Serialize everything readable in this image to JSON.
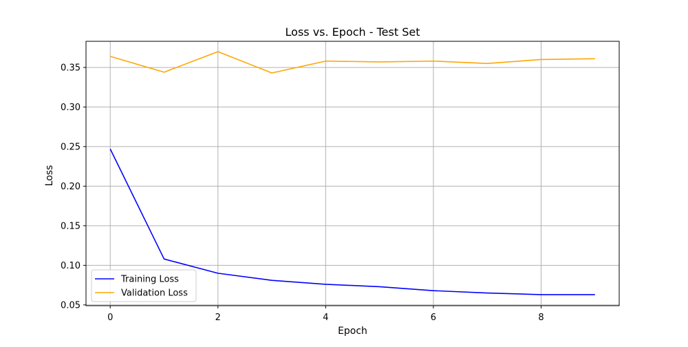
{
  "chart_data": {
    "type": "line",
    "title": "Loss vs. Epoch - Test Set",
    "xlabel": "Epoch",
    "ylabel": "Loss",
    "x": [
      0,
      1,
      2,
      3,
      4,
      5,
      6,
      7,
      8,
      9
    ],
    "xlim": [
      -0.45,
      9.45
    ],
    "ylim": [
      0.049,
      0.383
    ],
    "xticks": [
      0,
      2,
      4,
      6,
      8
    ],
    "yticks": [
      0.05,
      0.1,
      0.15,
      0.2,
      0.25,
      0.3,
      0.35
    ],
    "xtick_labels": [
      "0",
      "2",
      "4",
      "6",
      "8"
    ],
    "ytick_labels": [
      "0.05",
      "0.10",
      "0.15",
      "0.20",
      "0.25",
      "0.30",
      "0.35"
    ],
    "grid": true,
    "legend_position": "lower-left",
    "series": [
      {
        "name": "Training Loss",
        "color": "#0000ff",
        "values": [
          0.247,
          0.108,
          0.09,
          0.081,
          0.076,
          0.073,
          0.068,
          0.065,
          0.063,
          0.063
        ]
      },
      {
        "name": "Validation Loss",
        "color": "#ffa500",
        "values": [
          0.364,
          0.344,
          0.37,
          0.343,
          0.358,
          0.357,
          0.358,
          0.355,
          0.36,
          0.361
        ]
      }
    ]
  }
}
